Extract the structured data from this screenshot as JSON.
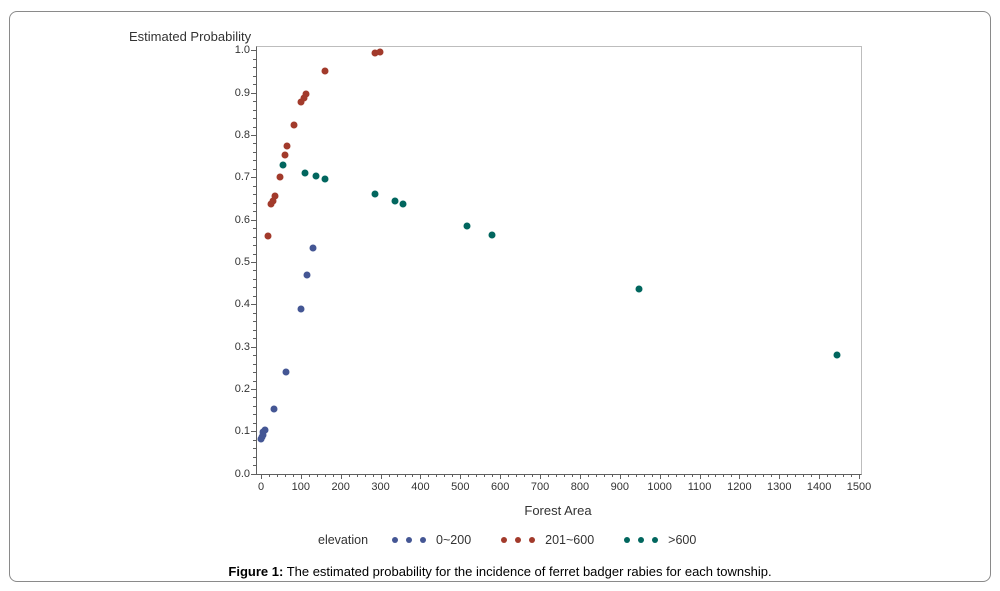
{
  "figure": {
    "caption_prefix": "Figure 1:",
    "caption_text": " The estimated probability for the incidence of ferret badger rabies for each township."
  },
  "chart_data": {
    "type": "scatter",
    "title": "",
    "ylabel": "Estimated Probability",
    "xlabel": "Forest Area",
    "legend_title": "elevation",
    "legend_position": "bottom",
    "grid": false,
    "xlim": [
      0,
      1500
    ],
    "ylim": [
      0.0,
      1.0
    ],
    "x_major_step": 100,
    "x_minor_step": 20,
    "y_major_step": 0.1,
    "y_minor_step": 0.02,
    "axis_color": "#5f5f5f",
    "frame_color": "#bdbdbd",
    "series": [
      {
        "name": "0~200",
        "color": "#445694",
        "points": [
          [
            0,
            0.082
          ],
          [
            2,
            0.087
          ],
          [
            4,
            0.092
          ],
          [
            6,
            0.098
          ],
          [
            9,
            0.104
          ],
          [
            33,
            0.152
          ],
          [
            63,
            0.24
          ],
          [
            100,
            0.389
          ],
          [
            116,
            0.47
          ],
          [
            130,
            0.534
          ]
        ]
      },
      {
        "name": "201~600",
        "color": "#A23A2B",
        "points": [
          [
            17,
            0.562
          ],
          [
            26,
            0.638
          ],
          [
            29,
            0.645
          ],
          [
            36,
            0.657
          ],
          [
            47,
            0.7
          ],
          [
            60,
            0.752
          ],
          [
            65,
            0.774
          ],
          [
            82,
            0.823
          ],
          [
            100,
            0.878
          ],
          [
            107,
            0.888
          ],
          [
            114,
            0.896
          ],
          [
            161,
            0.952
          ],
          [
            285,
            0.993
          ],
          [
            299,
            0.995
          ]
        ]
      },
      {
        "name": ">600",
        "color": "#01665E",
        "points": [
          [
            54,
            0.728
          ],
          [
            111,
            0.71
          ],
          [
            139,
            0.704
          ],
          [
            160,
            0.696
          ],
          [
            286,
            0.66
          ],
          [
            335,
            0.645
          ],
          [
            355,
            0.637
          ],
          [
            516,
            0.584
          ],
          [
            579,
            0.564
          ],
          [
            948,
            0.437
          ],
          [
            1445,
            0.281
          ]
        ]
      }
    ]
  }
}
